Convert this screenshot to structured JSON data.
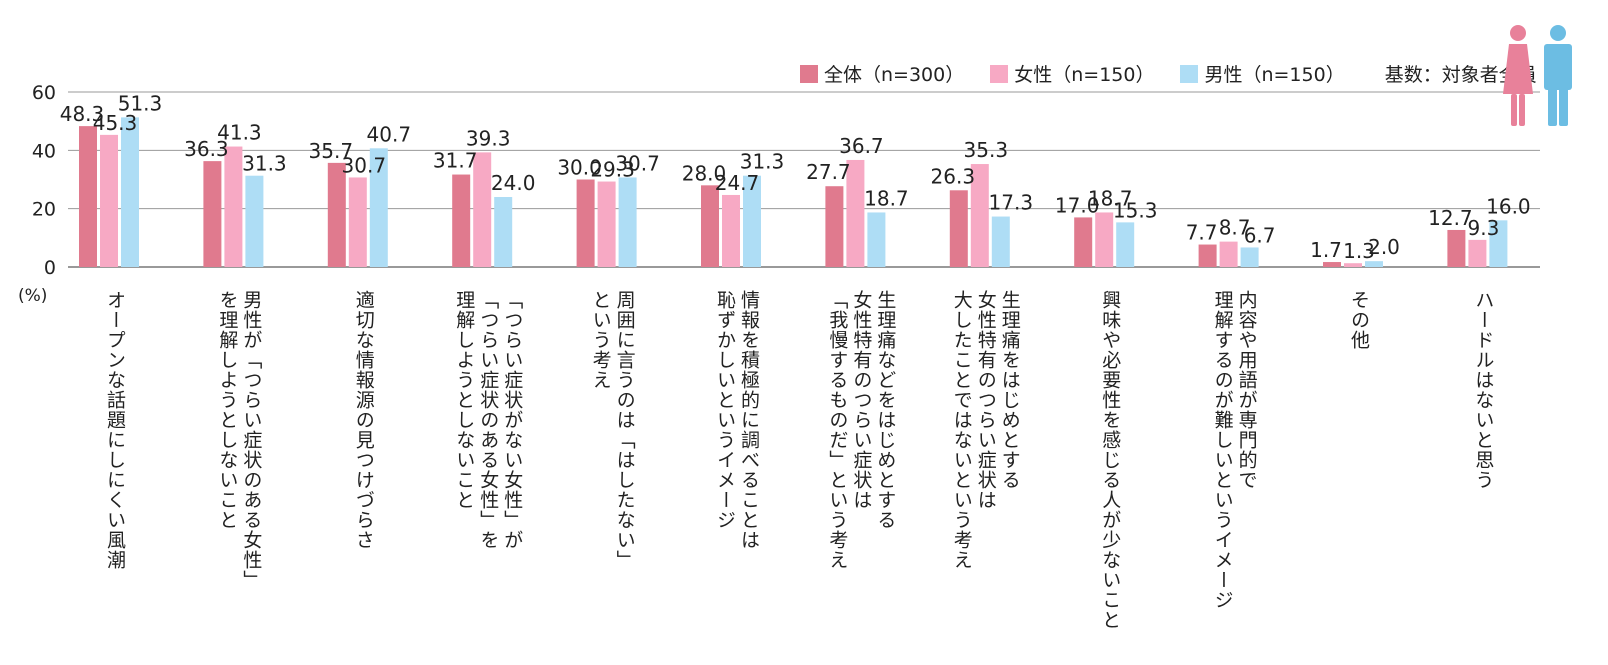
{
  "chart_data": {
    "type": "bar",
    "unit_label": "(%)",
    "ylim": [
      0,
      60
    ],
    "yticks": [
      "0",
      "20",
      "40",
      "60"
    ],
    "base_note": "基数：対象者全員",
    "colors": {
      "all": "#e07a8e",
      "female": "#f7a9c4",
      "male": "#aeddf5",
      "grid": "#999999",
      "icon_female": "#e8819a",
      "icon_male": "#6cbde3"
    },
    "categories": [
      "オープンな話題にしにくい風潮",
      "男性が「つらい症状のある女性」\nを理解しようとしないこと",
      "適切な情報源の見つけづらさ",
      "「つらい症状がない女性」が\n「つらい症状のある女性」を\n理解しようとしないこと",
      "周囲に言うのは「はしたない」\nという考え",
      "情報を積極的に調べることは\n恥ずかしいというイメージ",
      "生理痛などをはじめとする\n女性特有のつらい症状は\n「我慢するものだ」という考え",
      "生理痛をはじめとする\n女性特有のつらい症状は\n大したことではないという考え",
      "興味や必要性を感じる人が少ないこと",
      "内容や用語が専門的で\n理解するのが難しいというイメージ",
      "その他",
      "ハードルはないと思う"
    ],
    "series": [
      {
        "name": "全体（n=300）",
        "key": "all",
        "values": [
          48.3,
          36.3,
          35.7,
          31.7,
          30.0,
          28.0,
          27.7,
          26.3,
          17.0,
          7.7,
          1.7,
          12.7
        ],
        "labels": [
          "48.3",
          "36.3",
          "35.7",
          "31.7",
          "30.0",
          "28.0",
          "27.7",
          "26.3",
          "17.0",
          "7.7",
          "1.7",
          "12.7"
        ]
      },
      {
        "name": "女性（n=150）",
        "key": "female",
        "values": [
          45.3,
          41.3,
          30.7,
          39.3,
          29.3,
          24.7,
          36.7,
          35.3,
          18.7,
          8.7,
          1.3,
          9.3
        ],
        "labels": [
          "45.3",
          "41.3",
          "30.7",
          "39.3",
          "29.3",
          "24.7",
          "36.7",
          "35.3",
          "18.7",
          "8.7",
          "1.3",
          "9.3"
        ]
      },
      {
        "name": "男性（n=150）",
        "key": "male",
        "values": [
          51.3,
          31.3,
          40.7,
          24.0,
          30.7,
          31.3,
          18.7,
          17.3,
          15.3,
          6.7,
          2.0,
          16.0
        ],
        "labels": [
          "51.3",
          "31.3",
          "40.7",
          "24.0",
          "30.7",
          "31.3",
          "18.7",
          "17.3",
          "15.3",
          "6.7",
          "2.0",
          "16.0"
        ]
      }
    ]
  }
}
